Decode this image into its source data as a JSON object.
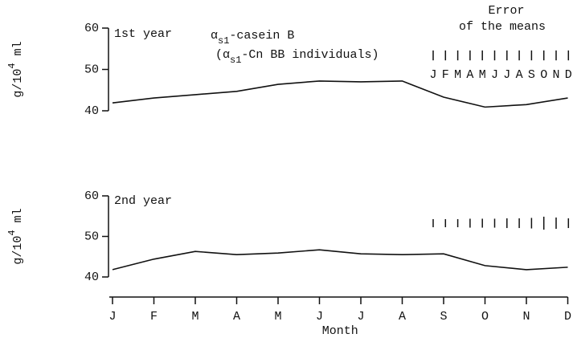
{
  "chart_data": [
    {
      "type": "line",
      "label": "1st year",
      "title_parts": [
        "α",
        "s1",
        "-casein B"
      ],
      "subtitle_parts": [
        "(α",
        "s1",
        "-Cn BB individuals)"
      ],
      "ylabel_parts": [
        "g/10",
        "4",
        " ml"
      ],
      "ylim": [
        40,
        60
      ],
      "yticks": [
        40,
        50,
        60
      ],
      "color": "#111111",
      "values": [
        41.9,
        43.1,
        43.9,
        44.7,
        46.4,
        47.2,
        47.0,
        47.2,
        43.3,
        40.9,
        41.5,
        43.1
      ],
      "error_title": [
        "Error",
        "of the means"
      ],
      "error_labels": [
        "J",
        "F",
        "M",
        "A",
        "M",
        "J",
        "J",
        "A",
        "S",
        "O",
        "N",
        "D"
      ],
      "errors": [
        2.4,
        2.4,
        2.4,
        2.4,
        2.4,
        2.4,
        2.4,
        2.4,
        2.4,
        2.4,
        2.4,
        2.4
      ]
    },
    {
      "type": "line",
      "label": "2nd year",
      "ylabel_parts": [
        "g/10",
        "4",
        " ml"
      ],
      "ylim": [
        40,
        60
      ],
      "yticks": [
        40,
        50,
        60
      ],
      "color": "#111111",
      "values": [
        41.8,
        44.4,
        46.3,
        45.5,
        45.9,
        46.7,
        45.7,
        45.5,
        45.7,
        42.8,
        41.8,
        42.4
      ],
      "errors": [
        2.0,
        2.0,
        2.0,
        2.2,
        2.2,
        2.2,
        2.4,
        2.4,
        2.6,
        3.2,
        2.8,
        2.4
      ],
      "categories": [
        "J",
        "F",
        "M",
        "A",
        "M",
        "J",
        "J",
        "A",
        "S",
        "O",
        "N",
        "D"
      ],
      "xlabel": "Month"
    }
  ]
}
